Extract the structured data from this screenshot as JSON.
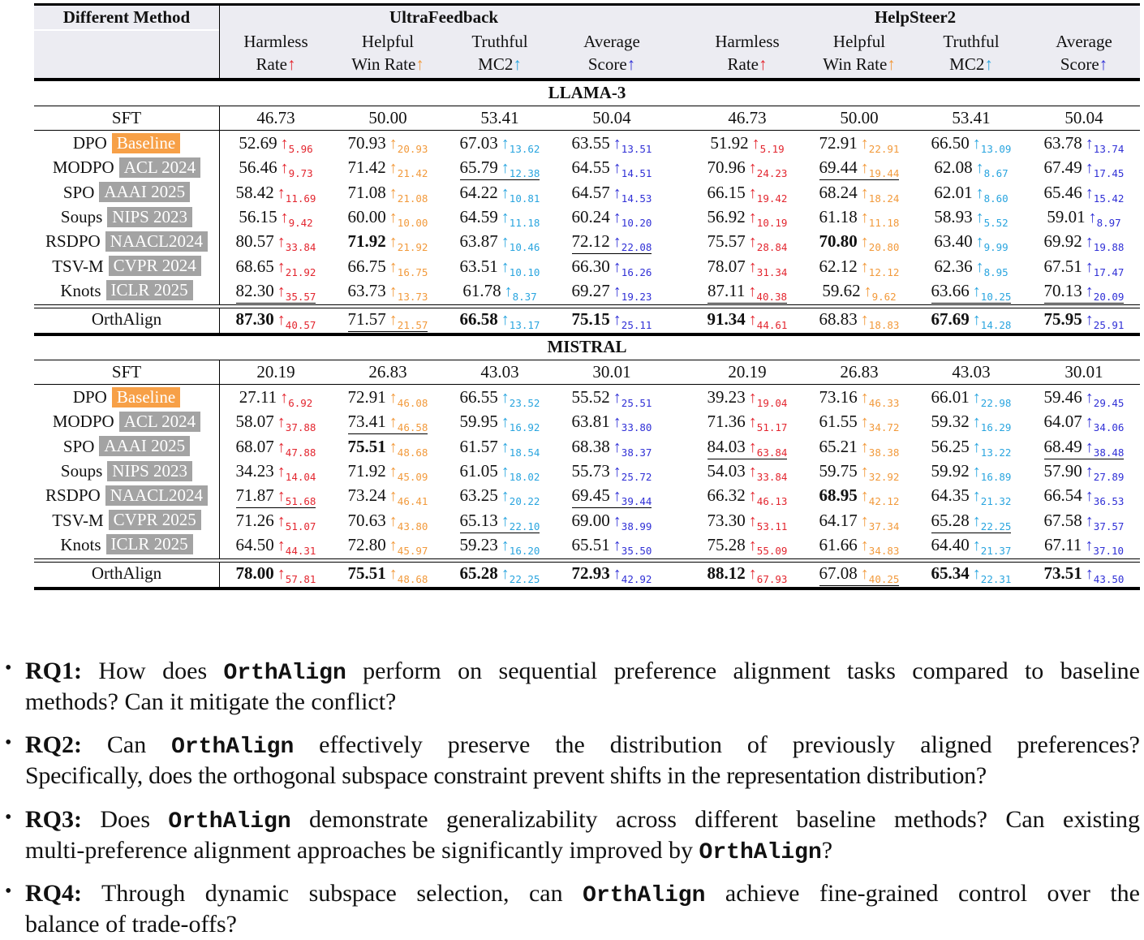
{
  "colors": {
    "harmless": "#e3262f",
    "helpful": "#f29a3c",
    "truthful": "#2aa5df",
    "average": "#3030d6",
    "baseline_badge": "#f7a047",
    "venue_badge": "#a3a3a3"
  },
  "header": {
    "method_label": "Different Method",
    "datasets": [
      "UltraFeedback",
      "HelpSteer2"
    ],
    "metrics": [
      {
        "line1": "Harmless",
        "line2": "Rate",
        "arrow": "↑",
        "key": "harmless"
      },
      {
        "line1": "Helpful",
        "line2": "Win Rate",
        "arrow": "↑",
        "key": "helpful"
      },
      {
        "line1": "Truthful",
        "line2": "MC2",
        "arrow": "↑",
        "key": "truthful"
      },
      {
        "line1": "Average",
        "line2": "Score",
        "arrow": "↑",
        "key": "average"
      }
    ]
  },
  "sections": [
    {
      "title": "LLAMA-3",
      "sft": {
        "method": "SFT",
        "values": [
          "46.73",
          "50.00",
          "53.41",
          "50.04",
          "46.73",
          "50.00",
          "53.41",
          "50.04"
        ]
      },
      "rows": [
        {
          "method": "DPO",
          "badge": "Baseline",
          "badge_type": "baseline",
          "cells": [
            [
              "52.69",
              "5.96",
              ""
            ],
            [
              "70.93",
              "20.93",
              ""
            ],
            [
              "67.03",
              "13.62",
              ""
            ],
            [
              "63.55",
              "13.51",
              ""
            ],
            [
              "51.92",
              "5.19",
              ""
            ],
            [
              "72.91",
              "22.91",
              ""
            ],
            [
              "66.50",
              "13.09",
              ""
            ],
            [
              "63.78",
              "13.74",
              ""
            ]
          ]
        },
        {
          "method": "MODPO",
          "badge": "ACL 2024",
          "badge_type": "venue",
          "cells": [
            [
              "56.46",
              "9.73",
              ""
            ],
            [
              "71.42",
              "21.42",
              ""
            ],
            [
              "65.79",
              "12.38",
              "u"
            ],
            [
              "64.55",
              "14.51",
              ""
            ],
            [
              "70.96",
              "24.23",
              ""
            ],
            [
              "69.44",
              "19.44",
              "u"
            ],
            [
              "62.08",
              "8.67",
              ""
            ],
            [
              "67.49",
              "17.45",
              ""
            ]
          ]
        },
        {
          "method": "SPO",
          "badge": "AAAI 2025",
          "badge_type": "venue",
          "cells": [
            [
              "58.42",
              "11.69",
              ""
            ],
            [
              "71.08",
              "21.08",
              ""
            ],
            [
              "64.22",
              "10.81",
              ""
            ],
            [
              "64.57",
              "14.53",
              ""
            ],
            [
              "66.15",
              "19.42",
              ""
            ],
            [
              "68.24",
              "18.24",
              ""
            ],
            [
              "62.01",
              "8.60",
              ""
            ],
            [
              "65.46",
              "15.42",
              ""
            ]
          ]
        },
        {
          "method": "Soups",
          "badge": "NIPS 2023",
          "badge_type": "venue",
          "cells": [
            [
              "56.15",
              "9.42",
              ""
            ],
            [
              "60.00",
              "10.00",
              ""
            ],
            [
              "64.59",
              "11.18",
              ""
            ],
            [
              "60.24",
              "10.20",
              ""
            ],
            [
              "56.92",
              "10.19",
              ""
            ],
            [
              "61.18",
              "11.18",
              ""
            ],
            [
              "58.93",
              "5.52",
              ""
            ],
            [
              "59.01",
              "8.97",
              ""
            ]
          ]
        },
        {
          "method": "RSDPO",
          "badge": "NAACL2024",
          "badge_type": "venue",
          "cells": [
            [
              "80.57",
              "33.84",
              ""
            ],
            [
              "71.92",
              "21.92",
              "b"
            ],
            [
              "63.87",
              "10.46",
              ""
            ],
            [
              "72.12",
              "22.08",
              "u"
            ],
            [
              "75.57",
              "28.84",
              ""
            ],
            [
              "70.80",
              "20.80",
              "b"
            ],
            [
              "63.40",
              "9.99",
              ""
            ],
            [
              "69.92",
              "19.88",
              ""
            ]
          ]
        },
        {
          "method": "TSV-M",
          "badge": "CVPR 2024",
          "badge_type": "venue",
          "cells": [
            [
              "68.65",
              "21.92",
              ""
            ],
            [
              "66.75",
              "16.75",
              ""
            ],
            [
              "63.51",
              "10.10",
              ""
            ],
            [
              "66.30",
              "16.26",
              ""
            ],
            [
              "78.07",
              "31.34",
              ""
            ],
            [
              "62.12",
              "12.12",
              ""
            ],
            [
              "62.36",
              "8.95",
              ""
            ],
            [
              "67.51",
              "17.47",
              ""
            ]
          ]
        },
        {
          "method": "Knots",
          "badge": "ICLR 2025",
          "badge_type": "venue",
          "cells": [
            [
              "82.30",
              "35.57",
              "u"
            ],
            [
              "63.73",
              "13.73",
              ""
            ],
            [
              "61.78",
              "8.37",
              ""
            ],
            [
              "69.27",
              "19.23",
              ""
            ],
            [
              "87.11",
              "40.38",
              "u"
            ],
            [
              "59.62",
              "9.62",
              ""
            ],
            [
              "63.66",
              "10.25",
              "u"
            ],
            [
              "70.13",
              "20.09",
              "u"
            ]
          ]
        }
      ],
      "ours": {
        "method": "OrthAlign",
        "cells": [
          [
            "87.30",
            "40.57",
            "b"
          ],
          [
            "71.57",
            "21.57",
            "u"
          ],
          [
            "66.58",
            "13.17",
            "b"
          ],
          [
            "75.15",
            "25.11",
            "b"
          ],
          [
            "91.34",
            "44.61",
            "b"
          ],
          [
            "68.83",
            "18.83",
            ""
          ],
          [
            "67.69",
            "14.28",
            "b"
          ],
          [
            "75.95",
            "25.91",
            "b"
          ]
        ]
      }
    },
    {
      "title": "MISTRAL",
      "sft": {
        "method": "SFT",
        "values": [
          "20.19",
          "26.83",
          "43.03",
          "30.01",
          "20.19",
          "26.83",
          "43.03",
          "30.01"
        ]
      },
      "rows": [
        {
          "method": "DPO",
          "badge": "Baseline",
          "badge_type": "baseline",
          "cells": [
            [
              "27.11",
              "6.92",
              ""
            ],
            [
              "72.91",
              "46.08",
              ""
            ],
            [
              "66.55",
              "23.52",
              ""
            ],
            [
              "55.52",
              "25.51",
              ""
            ],
            [
              "39.23",
              "19.04",
              ""
            ],
            [
              "73.16",
              "46.33",
              ""
            ],
            [
              "66.01",
              "22.98",
              ""
            ],
            [
              "59.46",
              "29.45",
              ""
            ]
          ]
        },
        {
          "method": "MODPO",
          "badge": "ACL 2024",
          "badge_type": "venue",
          "cells": [
            [
              "58.07",
              "37.88",
              ""
            ],
            [
              "73.41",
              "46.58",
              "u"
            ],
            [
              "59.95",
              "16.92",
              ""
            ],
            [
              "63.81",
              "33.80",
              ""
            ],
            [
              "71.36",
              "51.17",
              ""
            ],
            [
              "61.55",
              "34.72",
              ""
            ],
            [
              "59.32",
              "16.29",
              ""
            ],
            [
              "64.07",
              "34.06",
              ""
            ]
          ]
        },
        {
          "method": "SPO",
          "badge": "AAAI 2025",
          "badge_type": "venue",
          "cells": [
            [
              "68.07",
              "47.88",
              ""
            ],
            [
              "75.51",
              "48.68",
              "b"
            ],
            [
              "61.57",
              "18.54",
              ""
            ],
            [
              "68.38",
              "38.37",
              ""
            ],
            [
              "84.03",
              "63.84",
              "u"
            ],
            [
              "65.21",
              "38.38",
              ""
            ],
            [
              "56.25",
              "13.22",
              ""
            ],
            [
              "68.49",
              "38.48",
              "u"
            ]
          ]
        },
        {
          "method": "Soups",
          "badge": "NIPS 2023",
          "badge_type": "venue",
          "cells": [
            [
              "34.23",
              "14.04",
              ""
            ],
            [
              "71.92",
              "45.09",
              ""
            ],
            [
              "61.05",
              "18.02",
              ""
            ],
            [
              "55.73",
              "25.72",
              ""
            ],
            [
              "54.03",
              "33.84",
              ""
            ],
            [
              "59.75",
              "32.92",
              ""
            ],
            [
              "59.92",
              "16.89",
              ""
            ],
            [
              "57.90",
              "27.89",
              ""
            ]
          ]
        },
        {
          "method": "RSDPO",
          "badge": "NAACL2024",
          "badge_type": "venue",
          "cells": [
            [
              "71.87",
              "51.68",
              "u"
            ],
            [
              "73.24",
              "46.41",
              ""
            ],
            [
              "63.25",
              "20.22",
              ""
            ],
            [
              "69.45",
              "39.44",
              "u"
            ],
            [
              "66.32",
              "46.13",
              ""
            ],
            [
              "68.95",
              "42.12",
              "b"
            ],
            [
              "64.35",
              "21.32",
              ""
            ],
            [
              "66.54",
              "36.53",
              ""
            ]
          ]
        },
        {
          "method": "TSV-M",
          "badge": "CVPR 2025",
          "badge_type": "venue",
          "cells": [
            [
              "71.26",
              "51.07",
              ""
            ],
            [
              "70.63",
              "43.80",
              ""
            ],
            [
              "65.13",
              "22.10",
              "u"
            ],
            [
              "69.00",
              "38.99",
              ""
            ],
            [
              "73.30",
              "53.11",
              ""
            ],
            [
              "64.17",
              "37.34",
              ""
            ],
            [
              "65.28",
              "22.25",
              "u"
            ],
            [
              "67.58",
              "37.57",
              ""
            ]
          ]
        },
        {
          "method": "Knots",
          "badge": "ICLR 2025",
          "badge_type": "venue",
          "cells": [
            [
              "64.50",
              "44.31",
              ""
            ],
            [
              "72.80",
              "45.97",
              ""
            ],
            [
              "59.23",
              "16.20",
              ""
            ],
            [
              "65.51",
              "35.50",
              ""
            ],
            [
              "75.28",
              "55.09",
              ""
            ],
            [
              "61.66",
              "34.83",
              ""
            ],
            [
              "64.40",
              "21.37",
              ""
            ],
            [
              "67.11",
              "37.10",
              ""
            ]
          ]
        }
      ],
      "ours": {
        "method": "OrthAlign",
        "cells": [
          [
            "78.00",
            "57.81",
            "b"
          ],
          [
            "75.51",
            "48.68",
            "b"
          ],
          [
            "65.28",
            "22.25",
            "b"
          ],
          [
            "72.93",
            "42.92",
            "b"
          ],
          [
            "88.12",
            "67.93",
            "b"
          ],
          [
            "67.08",
            "40.25",
            "u"
          ],
          [
            "65.34",
            "22.31",
            "b"
          ],
          [
            "73.51",
            "43.50",
            "b"
          ]
        ]
      }
    }
  ],
  "bullets": {
    "marker": "•",
    "rq1": {
      "label": "RQ1:",
      "a": " How does ",
      "m1": "OrthAlign",
      "b": " perform on sequential preference alignment tasks compared to baseline",
      "c": "methods? Can it mitigate the conflict?"
    },
    "rq2": {
      "label": "RQ2:",
      "a": " Can ",
      "m1": "OrthAlign",
      "b": " effectively preserve the distribution of previously aligned preferences?",
      "c": "Specifically, does the orthogonal subspace constraint prevent shifts in the representation distribution?"
    },
    "rq3": {
      "label": "RQ3:",
      "a": " Does ",
      "m1": "OrthAlign",
      "b": " demonstrate generalizability across different baseline methods? Can existing",
      "c": "multi-preference alignment approaches be significantly improved by ",
      "m2": "OrthAlign",
      "d": "?"
    },
    "rq4": {
      "label": "RQ4:",
      "a": " Through dynamic subspace selection, can ",
      "m1": "OrthAlign",
      "b": " achieve fine-grained control over the",
      "c": "balance of trade-offs?"
    }
  }
}
